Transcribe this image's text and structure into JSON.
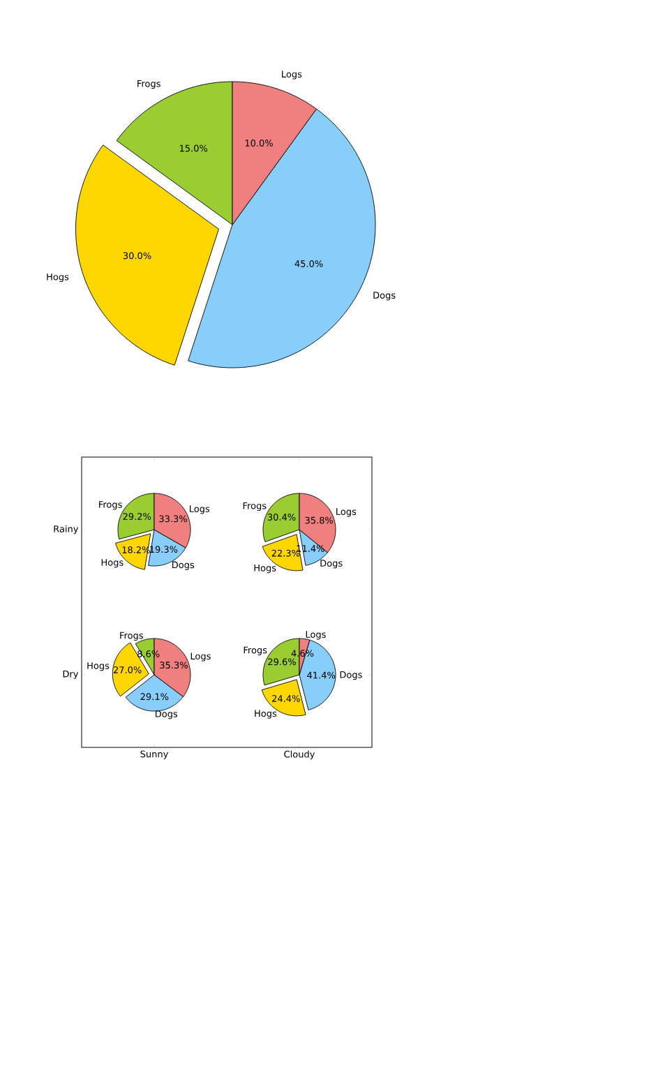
{
  "chart_data": [
    {
      "type": "pie",
      "categories": [
        "Frogs",
        "Hogs",
        "Dogs",
        "Logs"
      ],
      "values": [
        15,
        30,
        45,
        10
      ],
      "colors": [
        "#9acd32",
        "#ffd700",
        "#87cefa",
        "#f08080"
      ],
      "value_labels": [
        "15.0%",
        "30.0%",
        "45.0%",
        "10.0%"
      ]
    },
    {
      "type": "other",
      "categories": [
        "Sunny",
        "Cloudy"
      ],
      "y_categories": [
        "Rainy",
        "Dry"
      ]
    },
    {
      "type": "pie",
      "categories": [
        "Frogs",
        "Hogs",
        "Dogs",
        "Logs"
      ],
      "values": [
        29.2,
        18.2,
        19.3,
        33.3
      ],
      "colors": [
        "#9acd32",
        "#ffd700",
        "#87cefa",
        "#f08080"
      ],
      "value_labels": [
        "29.2%",
        "18.2%",
        "19.3%",
        "33.3%"
      ]
    },
    {
      "type": "pie",
      "categories": [
        "Frogs",
        "Hogs",
        "Dogs",
        "Logs"
      ],
      "values": [
        30.4,
        22.3,
        11.4,
        35.8
      ],
      "colors": [
        "#9acd32",
        "#ffd700",
        "#87cefa",
        "#f08080"
      ],
      "value_labels": [
        "30.4%",
        "22.3%",
        "11.4%",
        "35.8%"
      ]
    },
    {
      "type": "pie",
      "categories": [
        "Frogs",
        "Hogs",
        "Dogs",
        "Logs"
      ],
      "values": [
        8.6,
        27.0,
        29.1,
        35.3
      ],
      "colors": [
        "#9acd32",
        "#ffd700",
        "#87cefa",
        "#f08080"
      ],
      "value_labels": [
        "8.6%",
        "27.0%",
        "29.1%",
        "35.3%"
      ]
    },
    {
      "type": "pie",
      "categories": [
        "Frogs",
        "Hogs",
        "Dogs",
        "Logs"
      ],
      "values": [
        29.6,
        24.4,
        41.4,
        4.6
      ],
      "colors": [
        "#9acd32",
        "#ffd700",
        "#87cefa",
        "#f08080"
      ],
      "value_labels": [
        "29.6%",
        "24.4%",
        "41.4%",
        "4.6%"
      ]
    }
  ]
}
